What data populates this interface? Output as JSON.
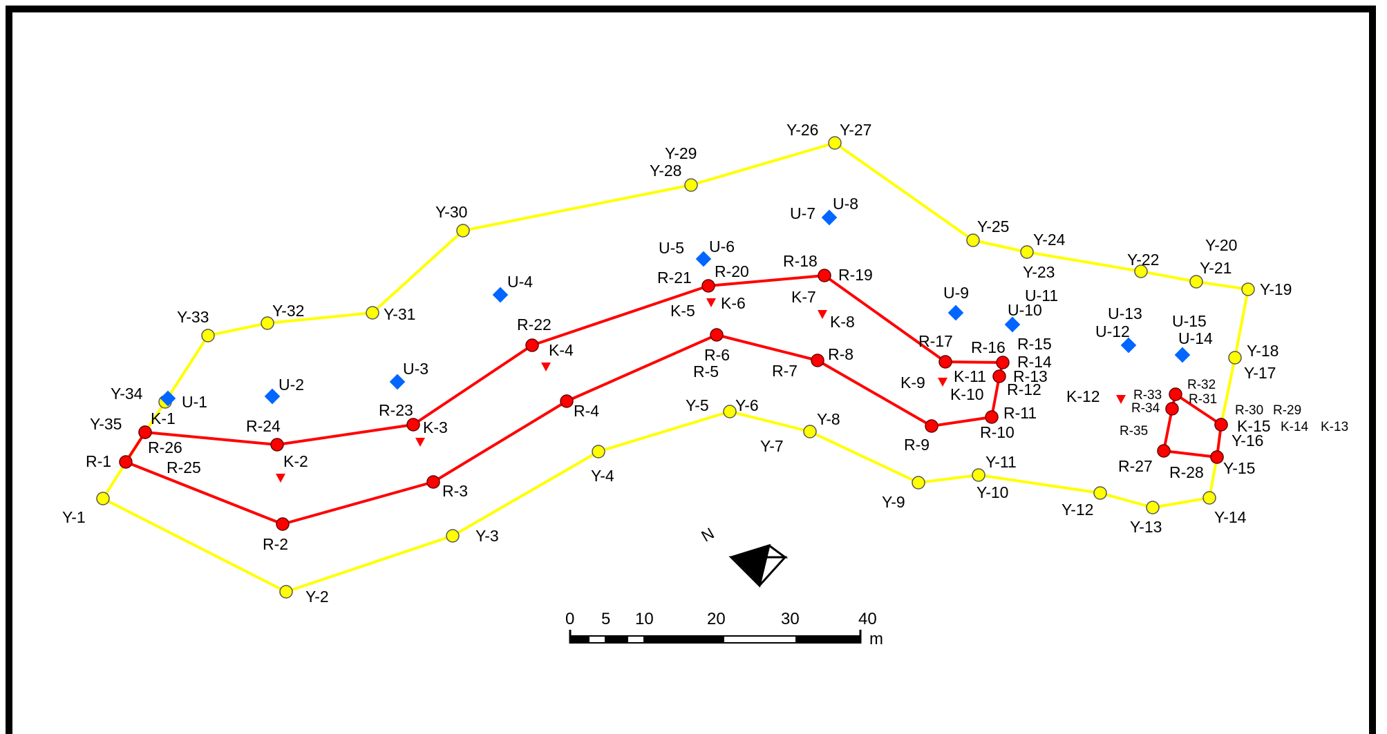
{
  "colors": {
    "yellow_line": "#ffff00",
    "yellow_point": "#ffff00",
    "red_line": "#ff0000",
    "red_point": "#ff0000",
    "blue_marker": "#0066ff",
    "k_marker": "#ff0000",
    "frame": "#000000"
  },
  "icons": {
    "north_arrow": "north-arrow-icon",
    "y_point": "yellow-circle-icon",
    "r_point": "red-circle-icon",
    "u_point": "blue-diamond-icon",
    "k_point": "red-triangle-icon"
  },
  "north_label": "N",
  "scale_bar": {
    "ticks": [
      "0",
      "5",
      "10",
      "20",
      "30",
      "40"
    ],
    "unit": "m"
  },
  "y_points": [
    {
      "id": "Y-1",
      "label": "Y-1"
    },
    {
      "id": "Y-2",
      "label": "Y-2"
    },
    {
      "id": "Y-3",
      "label": "Y-3"
    },
    {
      "id": "Y-4",
      "label": "Y-4"
    },
    {
      "id": "Y-5",
      "label": "Y-5"
    },
    {
      "id": "Y-6",
      "label": "Y-6"
    },
    {
      "id": "Y-7",
      "label": "Y-7"
    },
    {
      "id": "Y-8",
      "label": "Y-8"
    },
    {
      "id": "Y-9",
      "label": "Y-9"
    },
    {
      "id": "Y-10",
      "label": "Y-10"
    },
    {
      "id": "Y-11",
      "label": "Y-11"
    },
    {
      "id": "Y-12",
      "label": "Y-12"
    },
    {
      "id": "Y-13",
      "label": "Y-13"
    },
    {
      "id": "Y-14",
      "label": "Y-14"
    },
    {
      "id": "Y-15",
      "label": "Y-15"
    },
    {
      "id": "Y-16",
      "label": "Y-16"
    },
    {
      "id": "Y-17",
      "label": "Y-17"
    },
    {
      "id": "Y-18",
      "label": "Y-18"
    },
    {
      "id": "Y-19",
      "label": "Y-19"
    },
    {
      "id": "Y-20",
      "label": "Y-20"
    },
    {
      "id": "Y-21",
      "label": "Y-21"
    },
    {
      "id": "Y-22",
      "label": "Y-22"
    },
    {
      "id": "Y-23",
      "label": "Y-23"
    },
    {
      "id": "Y-24",
      "label": "Y-24"
    },
    {
      "id": "Y-25",
      "label": "Y-25"
    },
    {
      "id": "Y-26",
      "label": "Y-26"
    },
    {
      "id": "Y-27",
      "label": "Y-27"
    },
    {
      "id": "Y-28",
      "label": "Y-28"
    },
    {
      "id": "Y-29",
      "label": "Y-29"
    },
    {
      "id": "Y-30",
      "label": "Y-30"
    },
    {
      "id": "Y-31",
      "label": "Y-31"
    },
    {
      "id": "Y-32",
      "label": "Y-32"
    },
    {
      "id": "Y-33",
      "label": "Y-33"
    },
    {
      "id": "Y-34",
      "label": "Y-34"
    },
    {
      "id": "Y-35",
      "label": "Y-35"
    }
  ],
  "r_points": [
    {
      "id": "R-1",
      "label": "R-1"
    },
    {
      "id": "R-2",
      "label": "R-2"
    },
    {
      "id": "R-3",
      "label": "R-3"
    },
    {
      "id": "R-4",
      "label": "R-4"
    },
    {
      "id": "R-5",
      "label": "R-5"
    },
    {
      "id": "R-6",
      "label": "R-6"
    },
    {
      "id": "R-7",
      "label": "R-7"
    },
    {
      "id": "R-8",
      "label": "R-8"
    },
    {
      "id": "R-9",
      "label": "R-9"
    },
    {
      "id": "R-10",
      "label": "R-10"
    },
    {
      "id": "R-11",
      "label": "R-11"
    },
    {
      "id": "R-12",
      "label": "R-12"
    },
    {
      "id": "R-13",
      "label": "R-13"
    },
    {
      "id": "R-14",
      "label": "R-14"
    },
    {
      "id": "R-15",
      "label": "R-15"
    },
    {
      "id": "R-16",
      "label": "R-16"
    },
    {
      "id": "R-17",
      "label": "R-17"
    },
    {
      "id": "R-18",
      "label": "R-18"
    },
    {
      "id": "R-19",
      "label": "R-19"
    },
    {
      "id": "R-20",
      "label": "R-20"
    },
    {
      "id": "R-21",
      "label": "R-21"
    },
    {
      "id": "R-22",
      "label": "R-22"
    },
    {
      "id": "R-23",
      "label": "R-23"
    },
    {
      "id": "R-24",
      "label": "R-24"
    },
    {
      "id": "R-25",
      "label": "R-25"
    },
    {
      "id": "R-26",
      "label": "R-26"
    },
    {
      "id": "R-27",
      "label": "R-27"
    },
    {
      "id": "R-28",
      "label": "R-28"
    },
    {
      "id": "R-29",
      "label": "R-29"
    },
    {
      "id": "R-30",
      "label": "R-30"
    },
    {
      "id": "R-31",
      "label": "R-31"
    },
    {
      "id": "R-32",
      "label": "R-32"
    },
    {
      "id": "R-33",
      "label": "R-33"
    },
    {
      "id": "R-34",
      "label": "R-34"
    },
    {
      "id": "R-35",
      "label": "R-35"
    }
  ],
  "u_points": [
    {
      "id": "U-1",
      "label": "U-1"
    },
    {
      "id": "U-2",
      "label": "U-2"
    },
    {
      "id": "U-3",
      "label": "U-3"
    },
    {
      "id": "U-4",
      "label": "U-4"
    },
    {
      "id": "U-5",
      "label": "U-5"
    },
    {
      "id": "U-6",
      "label": "U-6"
    },
    {
      "id": "U-7",
      "label": "U-7"
    },
    {
      "id": "U-8",
      "label": "U-8"
    },
    {
      "id": "U-9",
      "label": "U-9"
    },
    {
      "id": "U-10",
      "label": "U-10"
    },
    {
      "id": "U-11",
      "label": "U-11"
    },
    {
      "id": "U-12",
      "label": "U-12"
    },
    {
      "id": "U-13",
      "label": "U-13"
    },
    {
      "id": "U-14",
      "label": "U-14"
    },
    {
      "id": "U-15",
      "label": "U-15"
    }
  ],
  "k_points": [
    {
      "id": "K-1",
      "label": "K-1"
    },
    {
      "id": "K-2",
      "label": "K-2"
    },
    {
      "id": "K-3",
      "label": "K-3"
    },
    {
      "id": "K-4",
      "label": "K-4"
    },
    {
      "id": "K-5",
      "label": "K-5"
    },
    {
      "id": "K-6",
      "label": "K-6"
    },
    {
      "id": "K-7",
      "label": "K-7"
    },
    {
      "id": "K-8",
      "label": "K-8"
    },
    {
      "id": "K-9",
      "label": "K-9"
    },
    {
      "id": "K-10",
      "label": "K-10"
    },
    {
      "id": "K-11",
      "label": "K-11"
    },
    {
      "id": "K-12",
      "label": "K-12"
    },
    {
      "id": "K-13",
      "label": "K-13"
    },
    {
      "id": "K-14",
      "label": "K-14"
    },
    {
      "id": "K-15",
      "label": "K-15"
    }
  ]
}
